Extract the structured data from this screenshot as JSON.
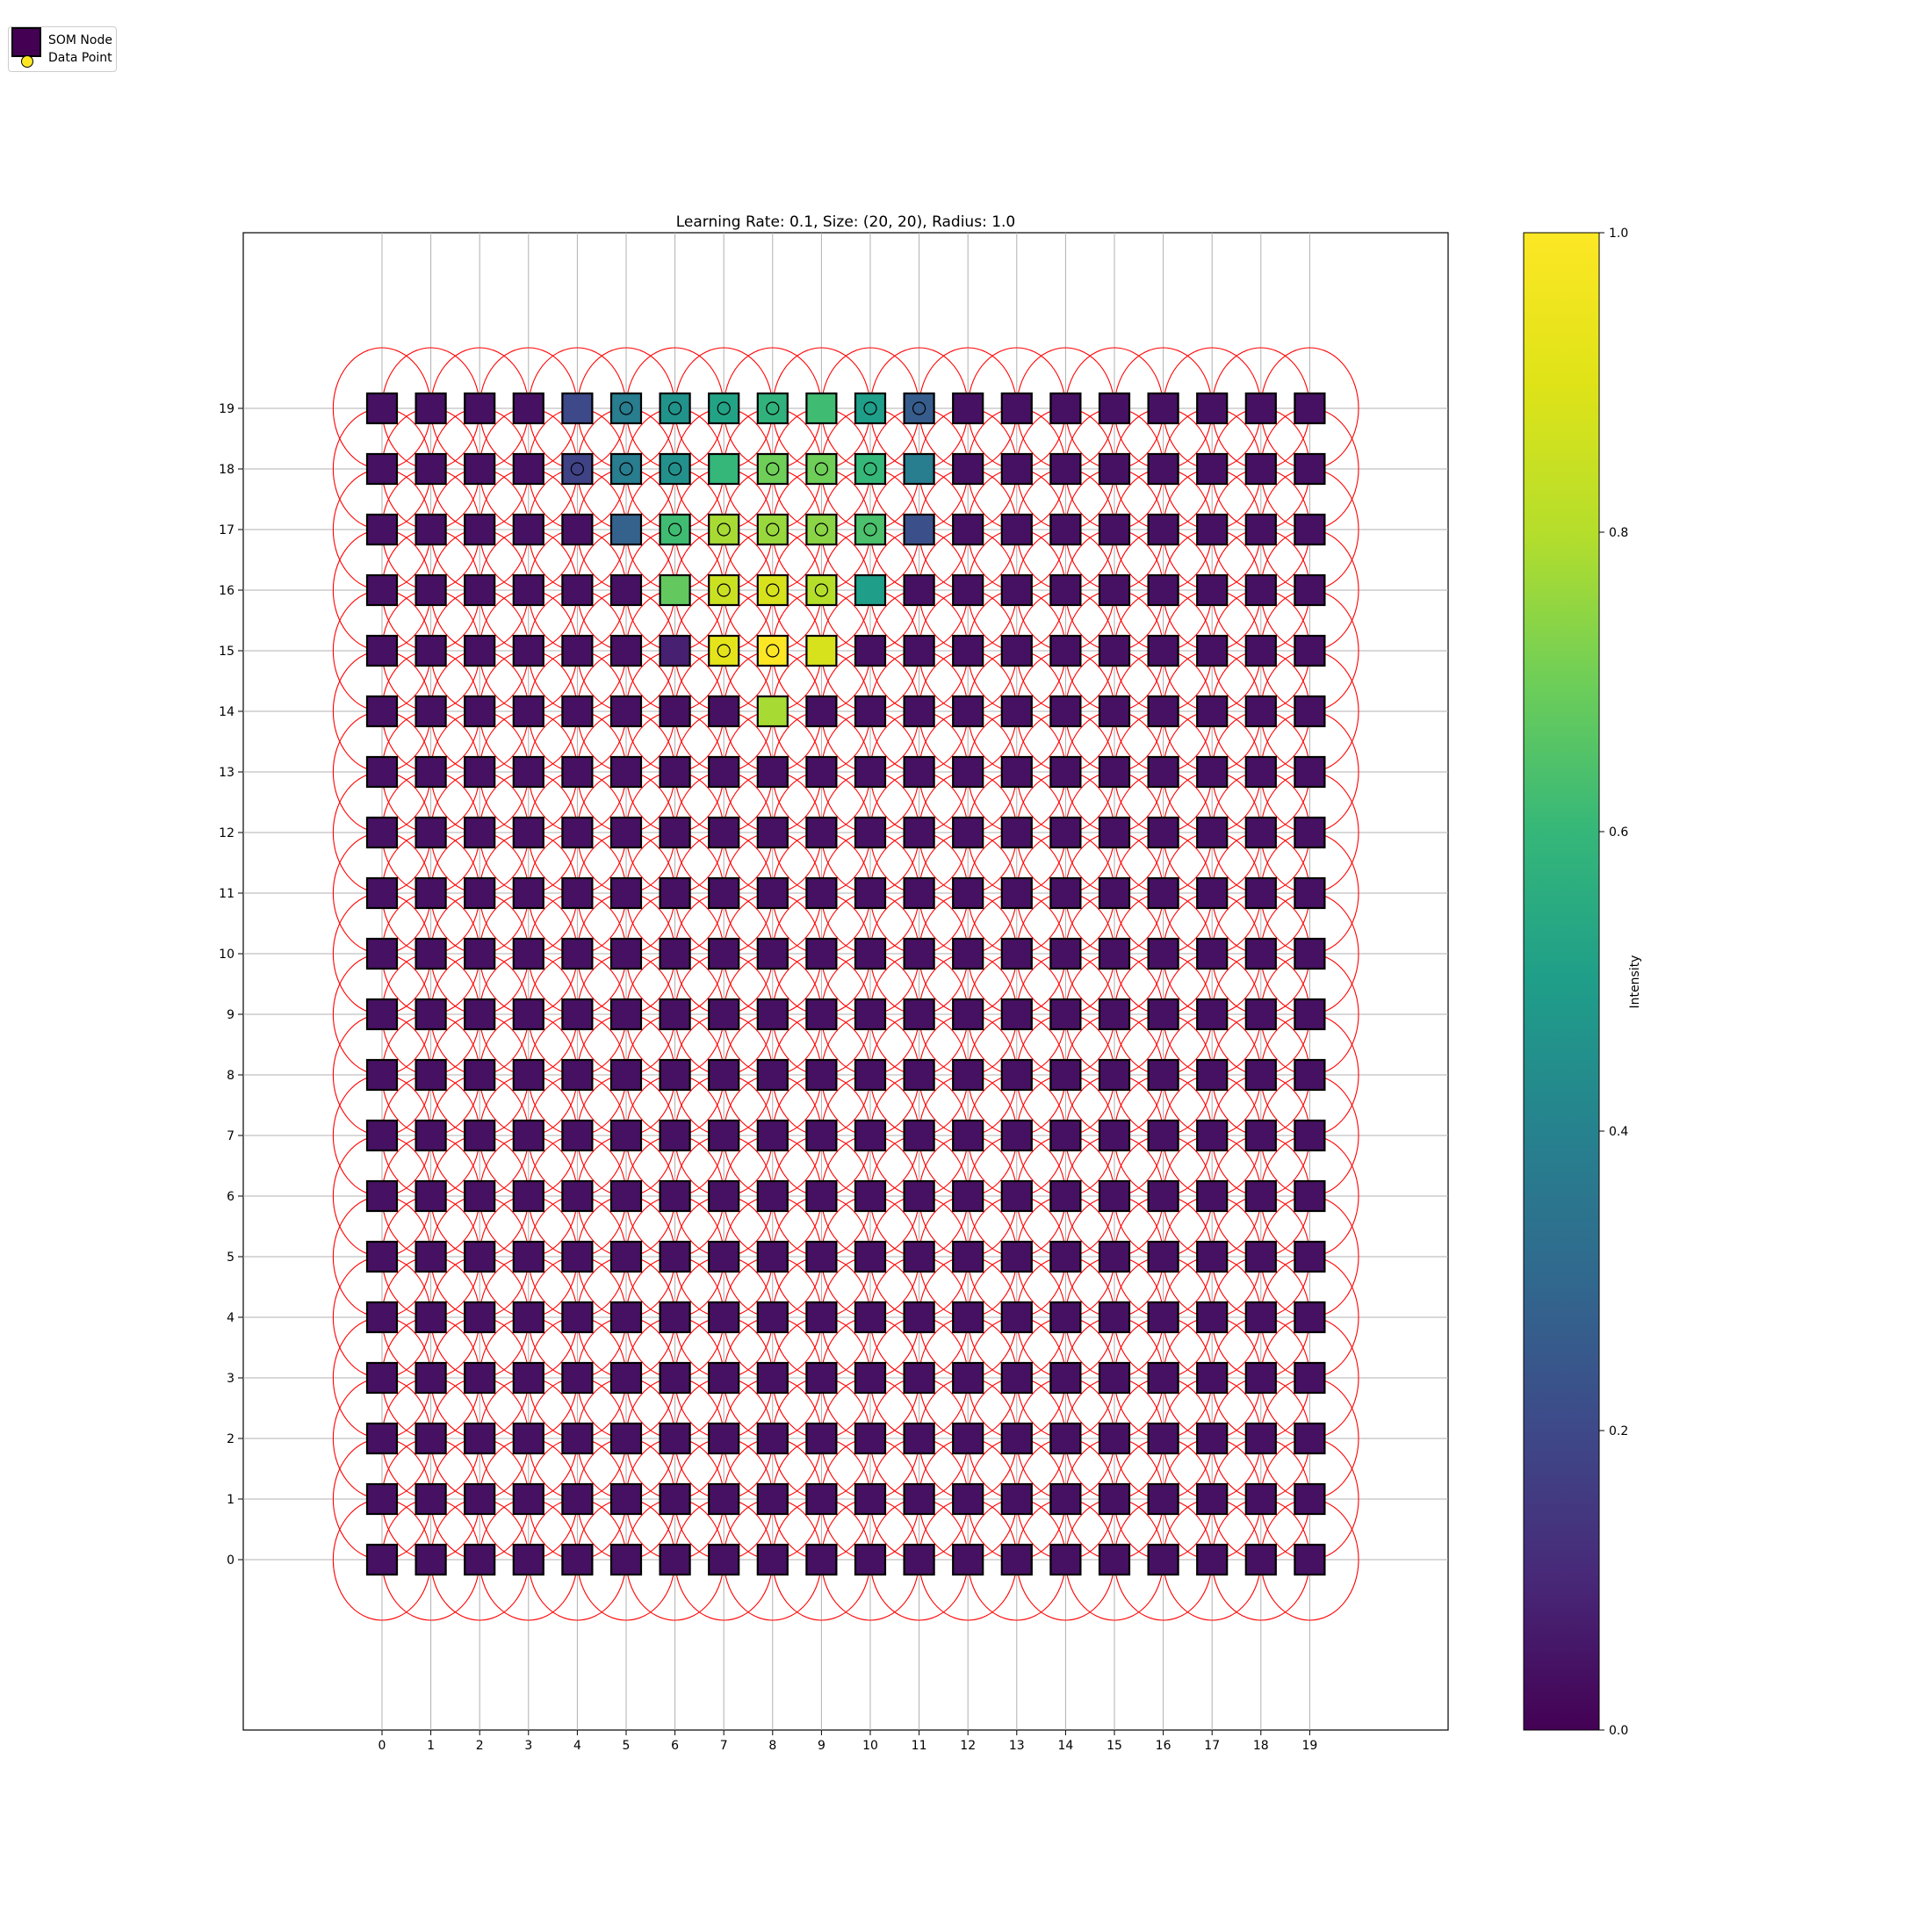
{
  "legend": {
    "node_label": "SOM Node",
    "point_label": "Data Point",
    "node_color": "#440154",
    "point_color": "#fde725"
  },
  "chart_data": [
    {
      "type": "heatmap",
      "title": "Learning Rate: 0.1, Size: (20, 20), Radius: 1.0",
      "xlabel": "",
      "ylabel": "",
      "grid": true,
      "grid_size": [
        20,
        20
      ],
      "radius": 1.0,
      "xlim": [
        -2.5,
        22.2
      ],
      "ylim": [
        -2.8,
        21.8
      ],
      "x_ticks": [
        "0",
        "1",
        "2",
        "3",
        "4",
        "5",
        "6",
        "7",
        "8",
        "9",
        "10",
        "11",
        "12",
        "13",
        "14",
        "15",
        "16",
        "17",
        "18",
        "19"
      ],
      "y_ticks": [
        "0",
        "1",
        "2",
        "3",
        "4",
        "5",
        "6",
        "7",
        "8",
        "9",
        "10",
        "11",
        "12",
        "13",
        "14",
        "15",
        "16",
        "17",
        "18",
        "19"
      ],
      "background_intensity": 0.04,
      "nodes_active": [
        {
          "x": 4,
          "y": 19,
          "v": 0.2
        },
        {
          "x": 5,
          "y": 19,
          "v": 0.38
        },
        {
          "x": 6,
          "y": 19,
          "v": 0.46
        },
        {
          "x": 7,
          "y": 19,
          "v": 0.52
        },
        {
          "x": 8,
          "y": 19,
          "v": 0.58
        },
        {
          "x": 9,
          "y": 19,
          "v": 0.62
        },
        {
          "x": 10,
          "y": 19,
          "v": 0.5
        },
        {
          "x": 11,
          "y": 19,
          "v": 0.26
        },
        {
          "x": 4,
          "y": 18,
          "v": 0.18
        },
        {
          "x": 5,
          "y": 18,
          "v": 0.38
        },
        {
          "x": 6,
          "y": 18,
          "v": 0.45
        },
        {
          "x": 7,
          "y": 18,
          "v": 0.6
        },
        {
          "x": 8,
          "y": 18,
          "v": 0.7
        },
        {
          "x": 9,
          "y": 18,
          "v": 0.7
        },
        {
          "x": 10,
          "y": 18,
          "v": 0.6
        },
        {
          "x": 11,
          "y": 18,
          "v": 0.38
        },
        {
          "x": 5,
          "y": 17,
          "v": 0.28
        },
        {
          "x": 6,
          "y": 17,
          "v": 0.62
        },
        {
          "x": 7,
          "y": 17,
          "v": 0.78
        },
        {
          "x": 8,
          "y": 17,
          "v": 0.76
        },
        {
          "x": 9,
          "y": 17,
          "v": 0.74
        },
        {
          "x": 10,
          "y": 17,
          "v": 0.64
        },
        {
          "x": 11,
          "y": 17,
          "v": 0.22
        },
        {
          "x": 6,
          "y": 16,
          "v": 0.68
        },
        {
          "x": 7,
          "y": 16,
          "v": 0.85
        },
        {
          "x": 8,
          "y": 16,
          "v": 0.88
        },
        {
          "x": 9,
          "y": 16,
          "v": 0.8
        },
        {
          "x": 10,
          "y": 16,
          "v": 0.5
        },
        {
          "x": 6,
          "y": 15,
          "v": 0.08
        },
        {
          "x": 7,
          "y": 15,
          "v": 0.92
        },
        {
          "x": 8,
          "y": 15,
          "v": 1.0
        },
        {
          "x": 9,
          "y": 15,
          "v": 0.88
        },
        {
          "x": 8,
          "y": 14,
          "v": 0.78
        }
      ],
      "data_points": [
        {
          "x": 5,
          "y": 19
        },
        {
          "x": 6,
          "y": 19
        },
        {
          "x": 7,
          "y": 19
        },
        {
          "x": 8,
          "y": 19
        },
        {
          "x": 10,
          "y": 19
        },
        {
          "x": 11,
          "y": 19
        },
        {
          "x": 4,
          "y": 18
        },
        {
          "x": 5,
          "y": 18
        },
        {
          "x": 6,
          "y": 18
        },
        {
          "x": 8,
          "y": 18
        },
        {
          "x": 9,
          "y": 18
        },
        {
          "x": 10,
          "y": 18
        },
        {
          "x": 6,
          "y": 17
        },
        {
          "x": 7,
          "y": 17
        },
        {
          "x": 8,
          "y": 17
        },
        {
          "x": 9,
          "y": 17
        },
        {
          "x": 10,
          "y": 17
        },
        {
          "x": 7,
          "y": 16
        },
        {
          "x": 8,
          "y": 16
        },
        {
          "x": 9,
          "y": 16
        },
        {
          "x": 7,
          "y": 15
        },
        {
          "x": 8,
          "y": 15
        }
      ],
      "colorbar": {
        "label": "Intensity",
        "range": [
          0,
          1
        ],
        "ticks": [
          "0.0",
          "0.2",
          "0.4",
          "0.6",
          "0.8",
          "1.0"
        ],
        "colormap": "viridis"
      }
    }
  ]
}
